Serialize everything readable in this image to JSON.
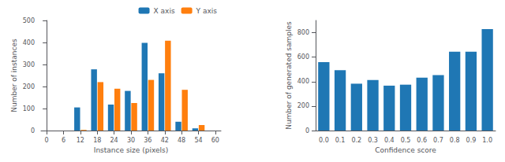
{
  "chart_data": [
    {
      "type": "bar",
      "xlabel": "Instance size (pixels)",
      "ylabel": "Number of instances",
      "x": [
        12,
        18,
        24,
        30,
        36,
        42,
        48,
        54
      ],
      "series": [
        {
          "name": "X axis",
          "color": "#1f77b4",
          "values": [
            105,
            278,
            118,
            180,
            398,
            260,
            40,
            10
          ]
        },
        {
          "name": "Y axis",
          "color": "#ff7f0e",
          "values": [
            3,
            220,
            190,
            125,
            230,
            408,
            185,
            25
          ]
        }
      ],
      "xlim": [
        -2,
        62
      ],
      "xticks": [
        0,
        6,
        12,
        18,
        24,
        30,
        36,
        42,
        48,
        54,
        60
      ],
      "ylim": [
        0,
        500
      ],
      "yticks": [
        0,
        100,
        200,
        300,
        400,
        500
      ],
      "legend": "upper right",
      "grid": false
    },
    {
      "type": "bar",
      "xlabel": "Confidence score",
      "ylabel": "Number of generated samples",
      "categories": [
        "0.0",
        "0.1",
        "0.2",
        "0.3",
        "0.4",
        "0.5",
        "0.6",
        "0.7",
        "0.8",
        "0.9",
        "1.0"
      ],
      "values": [
        560,
        493,
        383,
        413,
        367,
        375,
        432,
        453,
        645,
        645,
        830
      ],
      "color": "#1f77b4",
      "ylim": [
        0,
        900
      ],
      "yticks": [
        0,
        200,
        400,
        600,
        800
      ],
      "grid": false
    }
  ]
}
